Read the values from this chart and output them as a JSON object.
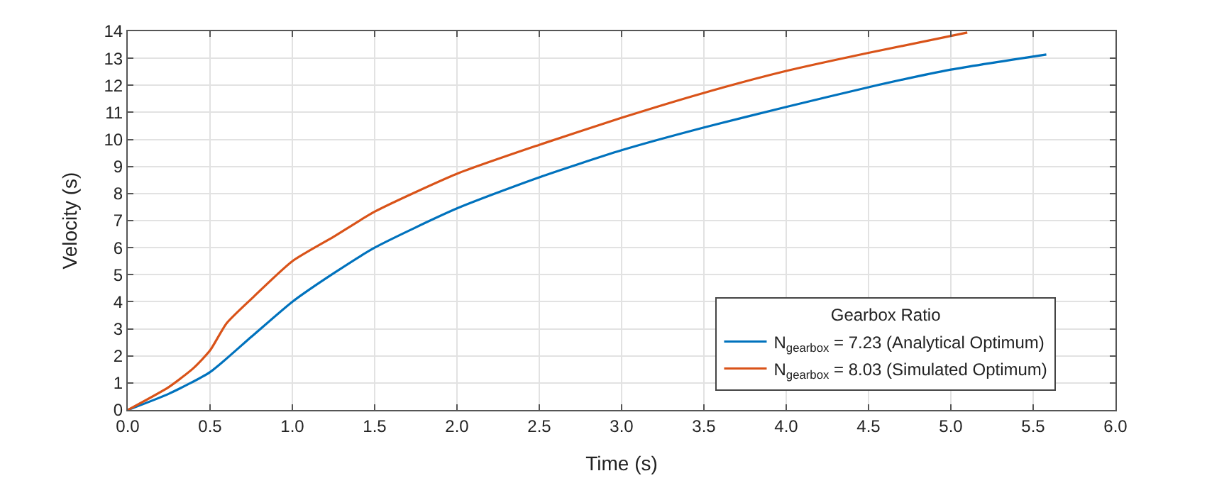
{
  "chart_data": {
    "type": "line",
    "xlabel": "Time (s)",
    "ylabel": "Velocity (s)",
    "legend_title": "Gearbox Ratio",
    "legend": "bottom right",
    "grid": true,
    "line_style": "solid",
    "xlim": [
      0,
      6
    ],
    "xticks": [
      {
        "value": 0,
        "label": "0.0"
      },
      0.5,
      {
        "value": 1,
        "label": "1.0"
      },
      1.5,
      {
        "value": 2,
        "label": "2.0"
      },
      2.5,
      {
        "value": 3,
        "label": "3.0"
      },
      3.5,
      {
        "value": 4,
        "label": "4.0"
      },
      4.5,
      {
        "value": 5,
        "label": "5.0"
      },
      5.5,
      {
        "value": 6,
        "label": "6.0"
      }
    ],
    "ylim": [
      0,
      14
    ],
    "yticks": [
      0,
      1,
      2,
      3,
      4,
      5,
      6,
      7,
      8,
      9,
      10,
      11,
      12,
      13,
      14
    ],
    "series": [
      {
        "name": "N$_{gearbox}$ = 7.23 (Analytical Optimum)",
        "color": "#0072bd",
        "x": [
          0,
          0.25,
          0.5,
          0.75,
          1.0,
          1.25,
          1.5,
          2.0,
          2.5,
          3.0,
          3.5,
          4.0,
          4.5,
          5.0,
          5.58
        ],
        "values": [
          0,
          0.6,
          1.4,
          2.7,
          4.0,
          5.05,
          6.0,
          7.45,
          8.6,
          9.6,
          10.44,
          11.2,
          11.93,
          12.58,
          13.14
        ]
      },
      {
        "name": "N$_{gearbox}$ = 8.03 (Simulated Optimum)",
        "color": "#d95319",
        "x": [
          0,
          0.25,
          0.4,
          0.5,
          0.6,
          0.75,
          1.0,
          1.25,
          1.5,
          2.0,
          2.5,
          3.0,
          3.5,
          4.0,
          4.5,
          5.1
        ],
        "values": [
          0,
          0.85,
          1.55,
          2.2,
          3.2,
          4.1,
          5.5,
          6.4,
          7.33,
          8.73,
          9.8,
          10.8,
          11.72,
          12.53,
          13.2,
          13.95
        ]
      }
    ]
  }
}
